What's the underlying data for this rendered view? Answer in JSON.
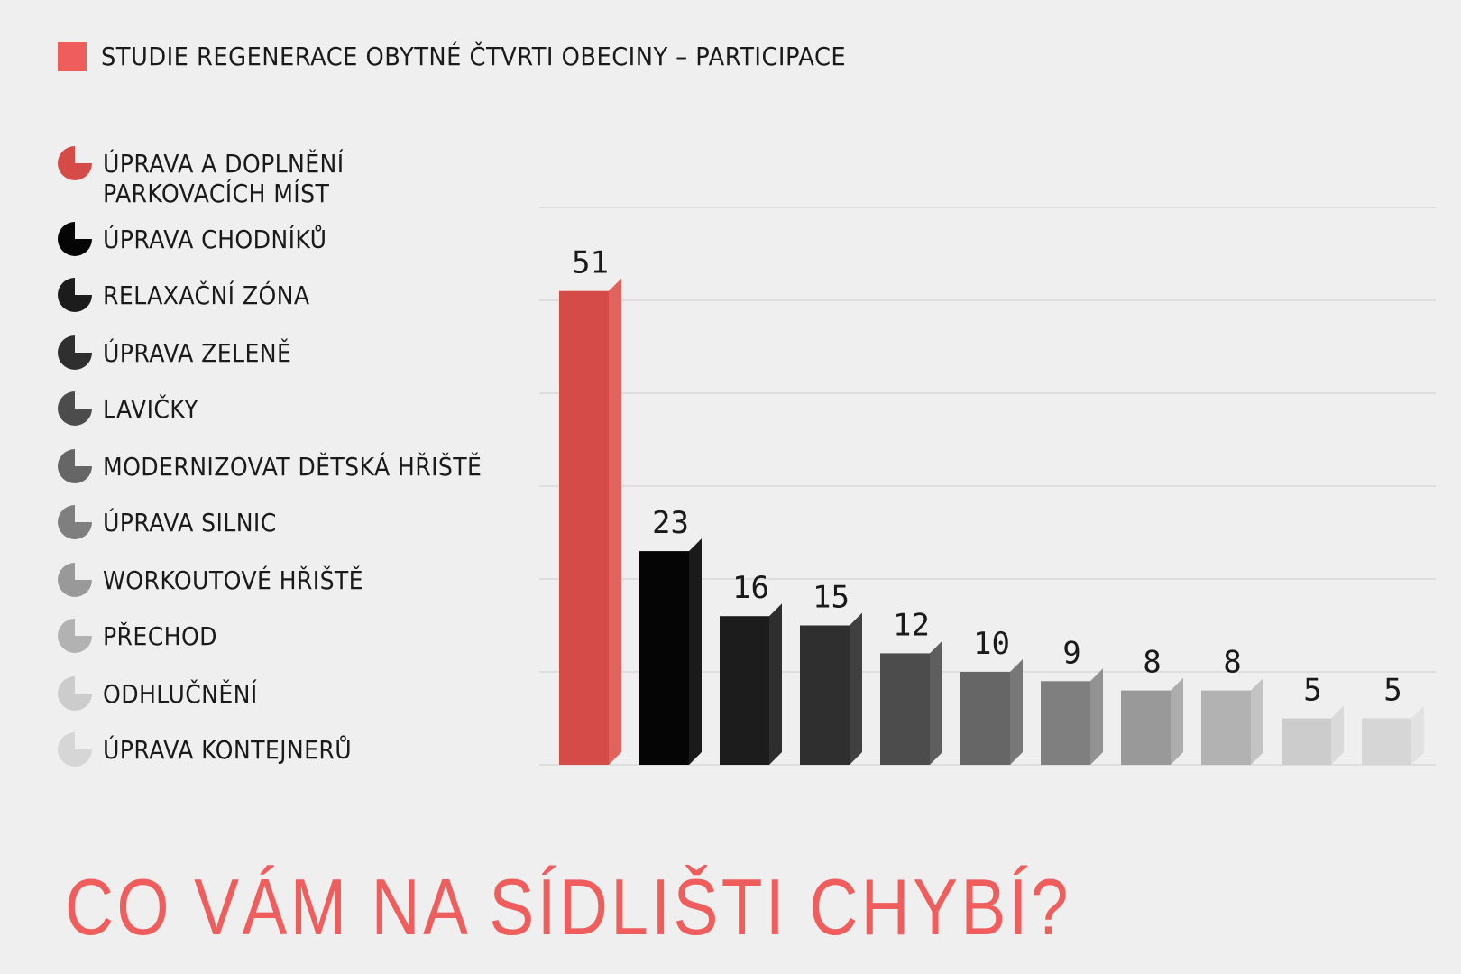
{
  "header": {
    "title": "STUDIE REGENERACE OBYTNÉ ČTVRTI OBECINY – PARTICIPACE",
    "swatch_color": "#ef5d5d"
  },
  "footer": {
    "title": "CO VÁM NA SÍDLIŠTI CHYBÍ?",
    "color": "#ef5d5d"
  },
  "chart_data": {
    "type": "bar",
    "categories": [
      "ÚPRAVA A DOPLNĚNÍ PARKOVACÍCH MÍST",
      "ÚPRAVA CHODNÍKŮ",
      "RELAXAČNÍ ZÓNA",
      "ÚPRAVA ZELENĚ",
      "LAVIČKY",
      "MODERNIZOVAT DĚTSKÁ HŘIŠTĚ",
      "ÚPRAVA SILNIC",
      "WORKOUTOVÉ HŘIŠTĚ",
      "PŘECHOD",
      "ODHLUČNĚNÍ",
      "ÚPRAVA KONTEJNERŮ"
    ],
    "legend_labels": [
      "ÚPRAVA A DOPLNĚNÍ\nPARKOVACÍCH MÍST",
      "ÚPRAVA CHODNÍKŮ",
      "RELAXAČNÍ ZÓNA",
      "ÚPRAVA ZELENĚ",
      "LAVIČKY",
      "MODERNIZOVAT DĚTSKÁ HŘIŠTĚ",
      "ÚPRAVA SILNIC",
      "WORKOUTOVÉ HŘIŠTĚ",
      "PŘECHOD",
      "ODHLUČNĚNÍ",
      "ÚPRAVA KONTEJNERŮ"
    ],
    "values": [
      51,
      23,
      16,
      15,
      12,
      10,
      9,
      8,
      8,
      5,
      5
    ],
    "colors": [
      "#d44b47",
      "#050505",
      "#1c1c1c",
      "#2f2f2f",
      "#4c4c4c",
      "#666666",
      "#7f7f7f",
      "#999999",
      "#b2b2b2",
      "#cccccc",
      "#d6d6d6"
    ],
    "side_colors": [
      "#e2625d",
      "#1a1a1a",
      "#2e2e2e",
      "#404040",
      "#5e5e5e",
      "#787878",
      "#929292",
      "#adadad",
      "#c3c3c3",
      "#dadada",
      "#e2e2e2"
    ],
    "ylim": [
      0,
      60
    ],
    "grid": true,
    "legend_position": "left",
    "title": "CO VÁM NA SÍDLIŠTI CHYBÍ?",
    "xlabel": "",
    "ylabel": ""
  }
}
